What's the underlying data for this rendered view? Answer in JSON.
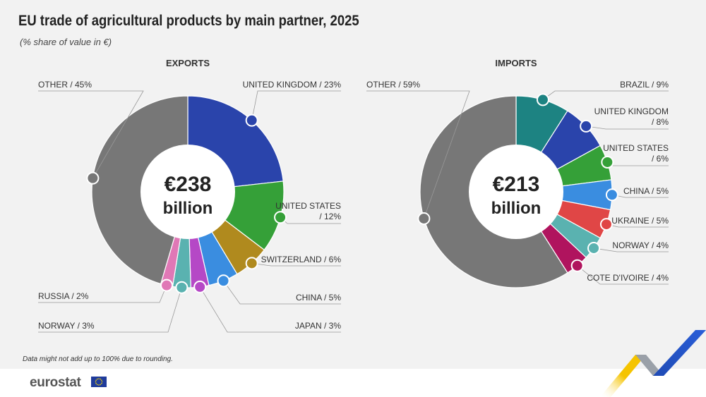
{
  "header": {
    "title": "EU trade of agricultural products by main partner, 2025",
    "subtitle": "(% share of value in €)"
  },
  "colors": {
    "gray": "#777777",
    "blue": "#2a44ab",
    "green": "#35a038",
    "olive": "#b08a1e",
    "lightblue": "#3a8de0",
    "purple": "#b548c6",
    "teal": "#5ab2b0",
    "pink": "#e078b6",
    "darkteal": "#1d8382",
    "red": "#e04646",
    "maroon": "#b0145e"
  },
  "chart_data": [
    {
      "type": "pie",
      "title": "EXPORTS",
      "total_line1": "€238",
      "total_line2": "billion",
      "slices": [
        {
          "label": "UNITED KINGDOM / 23%",
          "value": 23,
          "color": "#2a44ab"
        },
        {
          "label": "UNITED STATES / 12%",
          "value": 12,
          "color": "#35a038"
        },
        {
          "label": "SWITZERLAND / 6%",
          "value": 6,
          "color": "#b08a1e"
        },
        {
          "label": "CHINA / 5%",
          "value": 5,
          "color": "#3a8de0"
        },
        {
          "label": "JAPAN / 3%",
          "value": 3,
          "color": "#b548c6"
        },
        {
          "label": "NORWAY / 3%",
          "value": 3,
          "color": "#5ab2b0"
        },
        {
          "label": "RUSSIA / 2%",
          "value": 2,
          "color": "#e078b6"
        },
        {
          "label": "OTHER / 45%",
          "value": 45,
          "color": "#777777"
        }
      ]
    },
    {
      "type": "pie",
      "title": "IMPORTS",
      "total_line1": "€213",
      "total_line2": "billion",
      "slices": [
        {
          "label": "BRAZIL / 9%",
          "value": 9,
          "color": "#1d8382"
        },
        {
          "label": "UNITED KINGDOM / 8%",
          "value": 8,
          "color": "#2a44ab"
        },
        {
          "label": "UNITED STATES / 6%",
          "value": 6,
          "color": "#35a038"
        },
        {
          "label": "CHINA / 5%",
          "value": 5,
          "color": "#3a8de0"
        },
        {
          "label": "UKRAINE / 5%",
          "value": 5,
          "color": "#e04646"
        },
        {
          "label": "NORWAY / 4%",
          "value": 4,
          "color": "#5ab2b0"
        },
        {
          "label": "COTE D'IVOIRE / 4%",
          "value": 4,
          "color": "#b0145e"
        },
        {
          "label": "OTHER / 59%",
          "value": 59,
          "color": "#777777"
        }
      ]
    }
  ],
  "footnote": "Data might not add up to 100% due to rounding.",
  "logo": "eurostat"
}
